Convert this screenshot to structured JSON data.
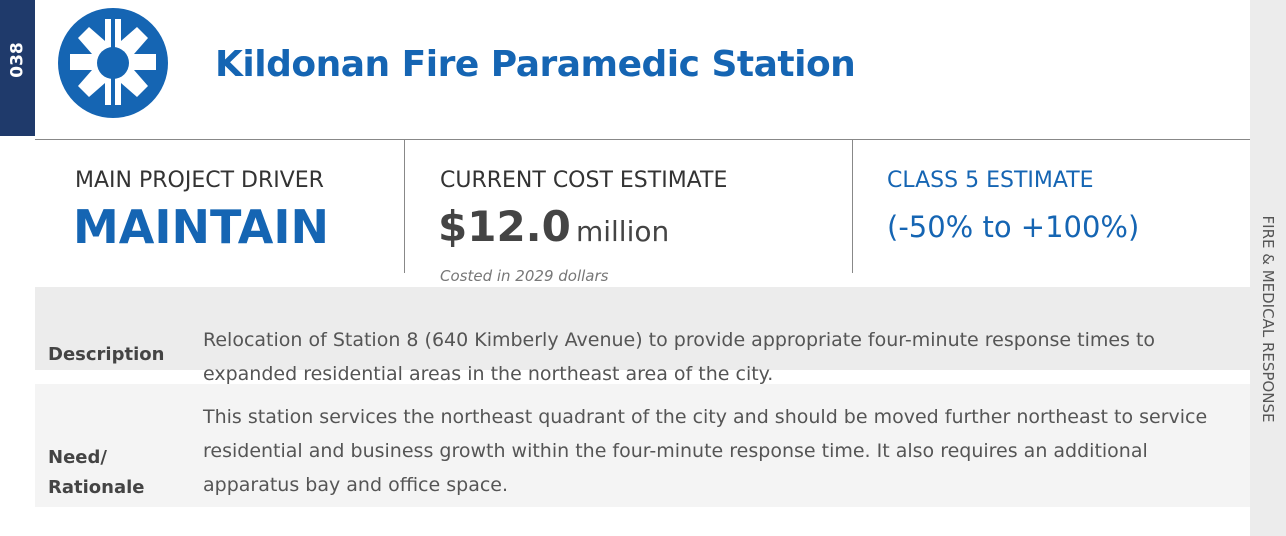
{
  "header": {
    "number": "038",
    "title": "Kildonan Fire Paramedic Station"
  },
  "sidebar": "FIRE & MEDICAL RESPONSE",
  "driver": {
    "label": "MAIN PROJECT DRIVER",
    "value": "MAINTAIN"
  },
  "cost": {
    "label": "CURRENT COST ESTIMATE",
    "amount": "$12.0",
    "unit": "million",
    "note": "Costed in 2029 dollars"
  },
  "estimate": {
    "class": "CLASS 5 ESTIMATE",
    "range": "(-50% to +100%)"
  },
  "rows": [
    {
      "label": "Description",
      "text": "Relocation of Station 8 (640 Kimberly Avenue) to provide appropriate four-minute response times to expanded residential areas in the northeast area of the city."
    },
    {
      "label": "Need/ Rationale",
      "text": "This station services the northeast quadrant of the city and should be moved further northeast to service residential and business growth within the four-minute response time. It also requires an additional apparatus bay and office space."
    }
  ]
}
